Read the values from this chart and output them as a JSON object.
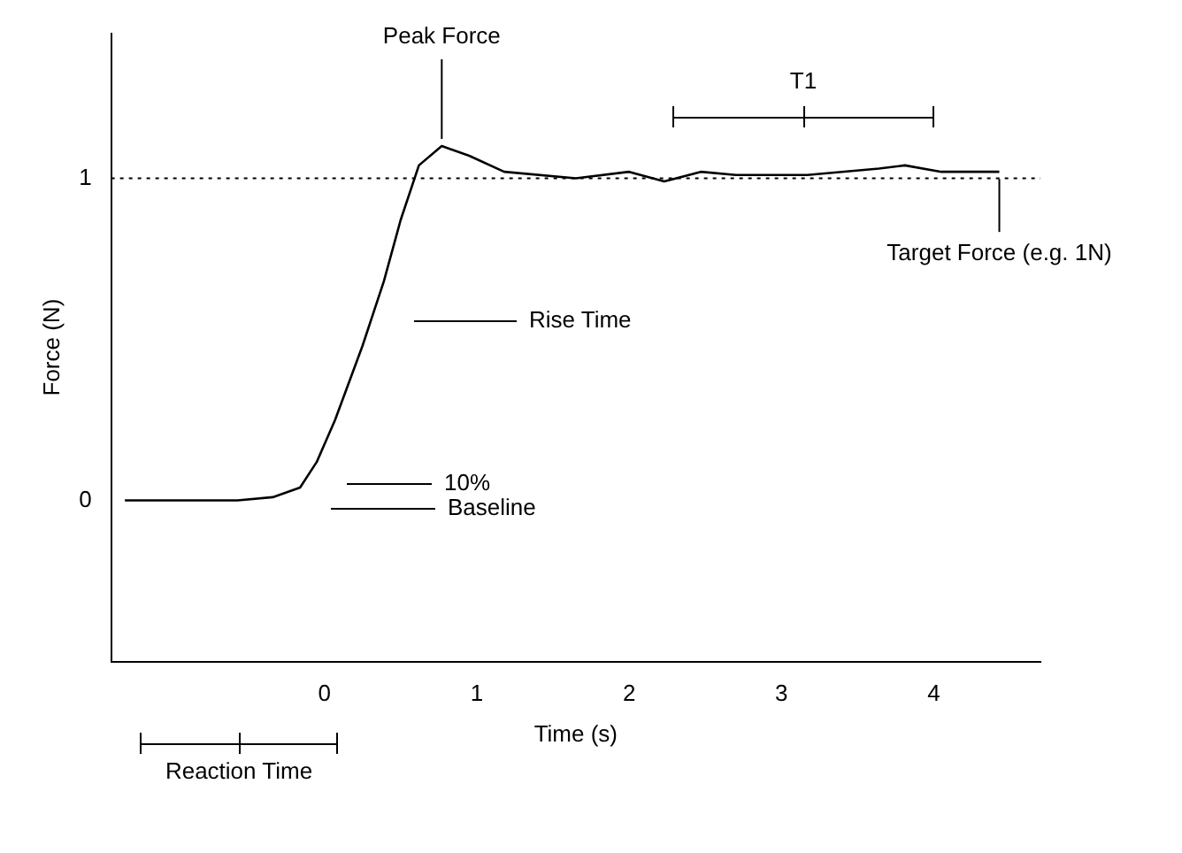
{
  "chart_data": {
    "type": "line",
    "xlabel": "Time (s)",
    "ylabel": "Force (N)",
    "x": [
      -1.31,
      -0.57,
      -0.34,
      -0.16,
      -0.05,
      0.07,
      0.25,
      0.39,
      0.5,
      0.62,
      0.77,
      0.95,
      1.18,
      1.65,
      2.0,
      2.23,
      2.47,
      2.7,
      3.17,
      3.64,
      3.81,
      4.05,
      4.43
    ],
    "series": [
      {
        "color": "#000000",
        "values": [
          0,
          0,
          0.01,
          0.04,
          0.12,
          0.25,
          0.48,
          0.68,
          0.87,
          1.04,
          1.1,
          1.07,
          1.02,
          1.0,
          1.02,
          0.99,
          1.02,
          1.01,
          1.01,
          1.03,
          1.04,
          1.02,
          1.02
        ]
      }
    ],
    "xlim": [
      -1.4,
      4.7
    ],
    "ylim": [
      -0.5,
      1.45
    ],
    "xticks": [
      0,
      1,
      2,
      3,
      4
    ],
    "yticks": [
      0,
      1
    ],
    "grid": false,
    "legend": false,
    "marker": "none",
    "line_style": "solid",
    "ref_lines": [
      {
        "axis": "y",
        "value": 1,
        "label": null,
        "line_style": "dotted",
        "color": "#000000"
      }
    ],
    "annotations": [
      {
        "text": "Peak Force",
        "x": 0.77,
        "y": 1.1
      },
      "Rise Time",
      "10%",
      "Baseline",
      {
        "text": "Target Force (e.g. 1N)",
        "x": 4.43,
        "y": 1.02
      },
      "T1",
      "Reaction Time"
    ]
  }
}
